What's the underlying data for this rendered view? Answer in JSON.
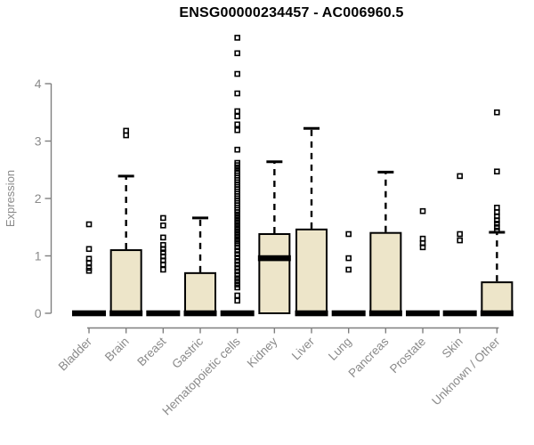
{
  "chart_data": {
    "type": "box",
    "title": "ENSG00000234457 - AC006960.5",
    "ylabel": "Expression",
    "xlabel": "",
    "yticks": [
      0,
      1,
      2,
      3,
      4
    ],
    "ylim": [
      0,
      4.95
    ],
    "grid": false,
    "legend": false,
    "colors": {
      "box_fill": "#EDE5C9",
      "box_stroke": "#000000",
      "axis_line": "#7f7f7f",
      "axis_text": "#8a8a8a",
      "title_text": "#000000",
      "background": "#ffffff"
    },
    "categories": [
      "Bladder",
      "Brain",
      "Breast",
      "Gastric",
      "Hematopoietic cells",
      "Kidney",
      "Liver",
      "Lung",
      "Pancreas",
      "Prostate",
      "Skin",
      "Unknown / Other"
    ],
    "boxes": [
      {
        "category": "Bladder",
        "q1": 0,
        "median": 0,
        "q3": 0,
        "whisker_low": 0,
        "whisker_high": 0,
        "outliers": [
          0.74,
          0.79,
          0.88,
          0.95,
          1.12,
          1.55
        ]
      },
      {
        "category": "Brain",
        "q1": 0,
        "median": 0,
        "q3": 1.1,
        "whisker_low": 0,
        "whisker_high": 2.39,
        "outliers": [
          3.1,
          3.18
        ]
      },
      {
        "category": "Breast",
        "q1": 0,
        "median": 0,
        "q3": 0,
        "whisker_low": 0,
        "whisker_high": 0,
        "outliers": [
          0.76,
          0.85,
          0.92,
          0.99,
          1.06,
          1.12,
          1.19,
          1.32,
          1.53,
          1.66
        ]
      },
      {
        "category": "Gastric",
        "q1": 0,
        "median": 0,
        "q3": 0.7,
        "whisker_low": 0,
        "whisker_high": 1.66,
        "outliers": []
      },
      {
        "category": "Hematopoietic cells",
        "q1": 0,
        "median": 0,
        "q3": 0,
        "whisker_low": 0,
        "whisker_high": 0,
        "outliers": [
          0.22,
          0.31,
          0.45,
          0.5,
          0.56,
          0.61,
          0.67,
          0.73,
          0.79,
          0.85,
          0.91,
          0.97,
          1.03,
          1.09,
          1.15,
          1.21,
          1.26,
          1.31,
          1.36,
          1.41,
          1.46,
          1.51,
          1.56,
          1.61,
          1.66,
          1.71,
          1.76,
          1.8,
          1.84,
          1.88,
          1.92,
          1.96,
          2.0,
          2.04,
          2.08,
          2.12,
          2.16,
          2.2,
          2.24,
          2.28,
          2.32,
          2.36,
          2.4,
          2.44,
          2.48,
          2.53,
          2.58,
          2.62,
          2.85,
          3.19,
          3.29,
          3.43,
          3.52,
          3.83,
          4.17,
          4.53,
          4.8
        ]
      },
      {
        "category": "Kidney",
        "q1": 0,
        "median": 0.96,
        "q3": 1.38,
        "whisker_low": 0,
        "whisker_high": 2.64,
        "outliers": []
      },
      {
        "category": "Liver",
        "q1": 0,
        "median": 0,
        "q3": 1.46,
        "whisker_low": 0,
        "whisker_high": 3.22,
        "outliers": []
      },
      {
        "category": "Lung",
        "q1": 0,
        "median": 0,
        "q3": 0,
        "whisker_low": 0,
        "whisker_high": 0,
        "outliers": [
          0.76,
          0.96,
          1.38
        ]
      },
      {
        "category": "Pancreas",
        "q1": 0,
        "median": 0,
        "q3": 1.4,
        "whisker_low": 0,
        "whisker_high": 2.46,
        "outliers": []
      },
      {
        "category": "Prostate",
        "q1": 0,
        "median": 0,
        "q3": 0,
        "whisker_low": 0,
        "whisker_high": 0,
        "outliers": [
          1.15,
          1.22,
          1.3,
          1.78
        ]
      },
      {
        "category": "Skin",
        "q1": 0,
        "median": 0,
        "q3": 0,
        "whisker_low": 0,
        "whisker_high": 0,
        "outliers": [
          1.27,
          1.38,
          2.39
        ]
      },
      {
        "category": "Unknown / Other",
        "q1": 0,
        "median": 0,
        "q3": 0.54,
        "whisker_low": 0,
        "whisker_high": 1.41,
        "outliers": [
          1.44,
          1.5,
          1.56,
          1.62,
          1.69,
          1.76,
          1.84,
          2.47,
          3.5
        ]
      }
    ]
  }
}
